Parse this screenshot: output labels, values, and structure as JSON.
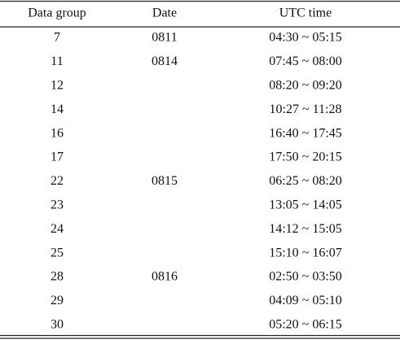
{
  "table": {
    "header": [
      "Data group",
      "Date",
      "UTC time"
    ],
    "rows": [
      [
        "7",
        "0811",
        "04:30 ~ 05:15"
      ],
      [
        "11",
        "0814",
        "07:45 ~ 08:00"
      ],
      [
        "12",
        null,
        "08:20 ~ 09:20"
      ],
      [
        "14",
        null,
        "10:27 ~ 11:28"
      ],
      [
        "16",
        null,
        "16:40 ~ 17:45"
      ],
      [
        "17",
        null,
        "17:50 ~ 20:15"
      ],
      [
        "22",
        "0815",
        "06:25 ~ 08:20"
      ],
      [
        "23",
        null,
        "13:05 ~ 14:05"
      ],
      [
        "24",
        null,
        "14:12 ~ 15:05"
      ],
      [
        "25",
        null,
        "15:10 ~ 16:07"
      ],
      [
        "28",
        "0816",
        "02:50 ~ 03:50"
      ],
      [
        "29",
        null,
        "04:09 ~ 05:10"
      ],
      [
        "30",
        null,
        "05:20 ~ 06:15"
      ]
    ]
  }
}
